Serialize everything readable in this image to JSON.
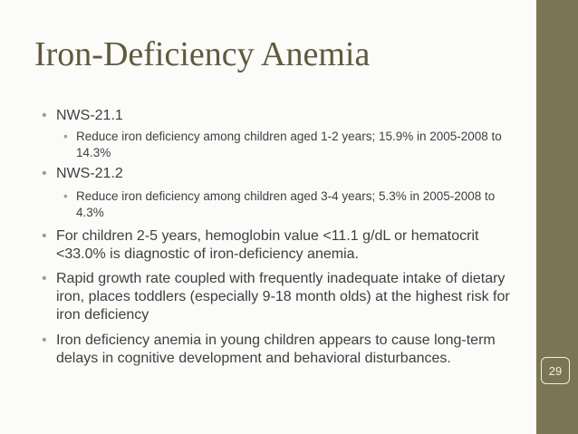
{
  "title": "Iron-Deficiency Anemia",
  "bullets": [
    {
      "text": "NWS-21.1",
      "sub": [
        "Reduce iron deficiency among children aged 1-2 years; 15.9% in 2005-2008 to 14.3%"
      ]
    },
    {
      "text": "NWS-21.2",
      "sub": [
        "Reduce iron deficiency among children aged 3-4 years; 5.3% in 2005-2008 to 4.3%"
      ]
    },
    {
      "text": "For children 2-5 years, hemoglobin value <11.1 g/dL or hematocrit <33.0% is diagnostic of iron-deficiency anemia."
    },
    {
      "text": "Rapid growth rate coupled with frequently inadequate intake of dietary iron, places toddlers (especially 9-18 month olds) at the highest risk for iron deficiency"
    },
    {
      "text": "Iron deficiency anemia in young children appears to cause long-term delays in cognitive development and behavioral disturbances."
    }
  ],
  "page_number": "29"
}
